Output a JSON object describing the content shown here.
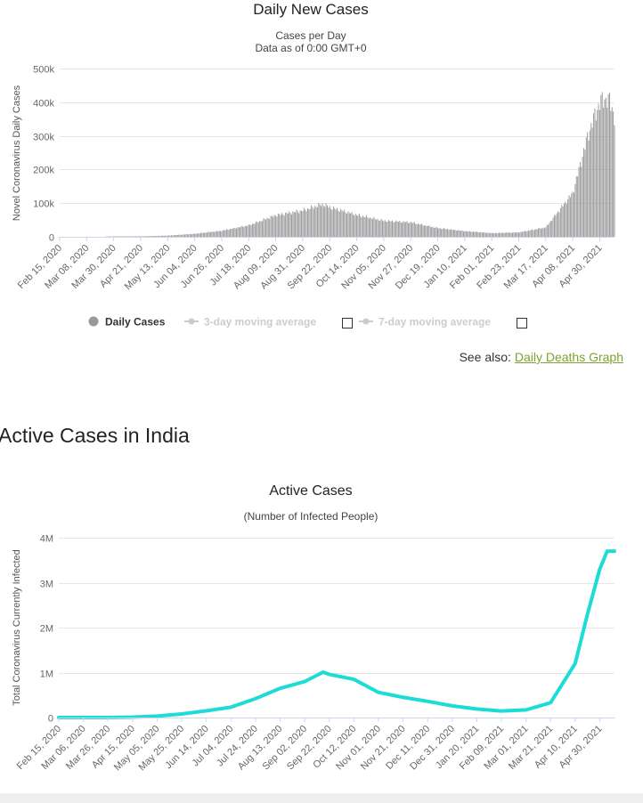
{
  "see_also": {
    "prefix": "See also:",
    "link": "Daily Deaths Graph"
  },
  "section_heading": "Active Cases in India",
  "chart_data": [
    {
      "type": "bar",
      "title": "Daily New Cases",
      "subtitle": [
        "Cases per Day",
        "Data as of 0:00 GMT+0"
      ],
      "xlabel": "",
      "ylabel": "Novel Coronavirus Daily Cases",
      "ylim": [
        0,
        500000
      ],
      "yticks": [
        "0",
        "100k",
        "200k",
        "300k",
        "400k",
        "500k"
      ],
      "x_start": "Feb 15, 2020",
      "x_end": "May 12, 2021",
      "xticks": [
        "Feb 15, 2020",
        "Mar 08, 2020",
        "Mar 30, 2020",
        "Apr 21, 2020",
        "May 13, 2020",
        "Jun 04, 2020",
        "Jun 26, 2020",
        "Jul 18, 2020",
        "Aug 09, 2020",
        "Aug 31, 2020",
        "Sep 22, 2020",
        "Oct 14, 2020",
        "Nov 05, 2020",
        "Nov 27, 2020",
        "Dec 19, 2020",
        "Jan 10, 2021",
        "Feb 01, 2021",
        "Feb 23, 2021",
        "Mar 17, 2021",
        "Apr 08, 2021",
        "Apr 30, 2021"
      ],
      "bar_color": "#999999",
      "series_keyframes": [
        [
          "2020-02-15",
          0
        ],
        [
          "2020-03-15",
          100
        ],
        [
          "2020-04-01",
          1500
        ],
        [
          "2020-04-21",
          1400
        ],
        [
          "2020-05-13",
          3600
        ],
        [
          "2020-06-04",
          9000
        ],
        [
          "2020-06-26",
          18000
        ],
        [
          "2020-07-18",
          34000
        ],
        [
          "2020-08-09",
          64000
        ],
        [
          "2020-08-31",
          78000
        ],
        [
          "2020-09-16",
          97000
        ],
        [
          "2020-09-22",
          88000
        ],
        [
          "2020-10-14",
          65000
        ],
        [
          "2020-11-05",
          48000
        ],
        [
          "2020-11-27",
          43000
        ],
        [
          "2020-12-19",
          26000
        ],
        [
          "2021-01-10",
          17000
        ],
        [
          "2021-02-01",
          11000
        ],
        [
          "2021-02-23",
          13000
        ],
        [
          "2021-03-17",
          28000
        ],
        [
          "2021-04-08",
          130000
        ],
        [
          "2021-04-21",
          310000
        ],
        [
          "2021-04-30",
          400000
        ],
        [
          "2021-05-06",
          412000
        ],
        [
          "2021-05-08",
          402000
        ],
        [
          "2021-05-12",
          360000
        ]
      ],
      "legend": [
        {
          "label": "Daily Cases",
          "active": true,
          "color": "#999999"
        },
        {
          "label": "3-day moving average",
          "active": false,
          "color": "#cccccc"
        },
        {
          "label": "7-day moving average",
          "active": false,
          "color": "#cccccc"
        }
      ],
      "legend_placement": "bottom",
      "grid": true
    },
    {
      "type": "line",
      "title": "Active Cases",
      "subtitle": "(Number of Infected People)",
      "xlabel": "",
      "ylabel": "Total Coronavirus Currently Infected",
      "ylim": [
        0,
        4000000
      ],
      "yticks": [
        "0",
        "1M",
        "2M",
        "3M",
        "4M"
      ],
      "x_start": "Feb 15, 2020",
      "x_end": "May 12, 2021",
      "xticks": [
        "Feb 15, 2020",
        "Mar 06, 2020",
        "Mar 26, 2020",
        "Apr 15, 2020",
        "May 05, 2020",
        "May 25, 2020",
        "Jun 14, 2020",
        "Jul 04, 2020",
        "Jul 24, 2020",
        "Aug 13, 2020",
        "Sep 02, 2020",
        "Sep 22, 2020",
        "Oct 12, 2020",
        "Nov 01, 2020",
        "Nov 21, 2020",
        "Dec 11, 2020",
        "Dec 31, 2020",
        "Jan 20, 2021",
        "Feb 09, 2021",
        "Mar 01, 2021",
        "Mar 21, 2021",
        "Apr 10, 2021",
        "Apr 30, 2021"
      ],
      "line_color": "#1ddbd6",
      "series": [
        {
          "points": [
            [
              "2020-02-15",
              0
            ],
            [
              "2020-03-26",
              600
            ],
            [
              "2020-04-15",
              9000
            ],
            [
              "2020-05-05",
              32000
            ],
            [
              "2020-05-25",
              80000
            ],
            [
              "2020-06-14",
              150000
            ],
            [
              "2020-07-04",
              230000
            ],
            [
              "2020-07-24",
              420000
            ],
            [
              "2020-08-13",
              650000
            ],
            [
              "2020-09-02",
              800000
            ],
            [
              "2020-09-17",
              1010000
            ],
            [
              "2020-09-22",
              960000
            ],
            [
              "2020-10-12",
              850000
            ],
            [
              "2020-11-01",
              560000
            ],
            [
              "2020-11-21",
              450000
            ],
            [
              "2020-12-11",
              360000
            ],
            [
              "2020-12-31",
              260000
            ],
            [
              "2021-01-20",
              190000
            ],
            [
              "2021-02-09",
              145000
            ],
            [
              "2021-03-01",
              170000
            ],
            [
              "2021-03-21",
              330000
            ],
            [
              "2021-04-10",
              1200000
            ],
            [
              "2021-04-20",
              2300000
            ],
            [
              "2021-04-30",
              3300000
            ],
            [
              "2021-05-06",
              3700000
            ],
            [
              "2021-05-12",
              3700000
            ]
          ]
        }
      ],
      "grid": true
    }
  ]
}
